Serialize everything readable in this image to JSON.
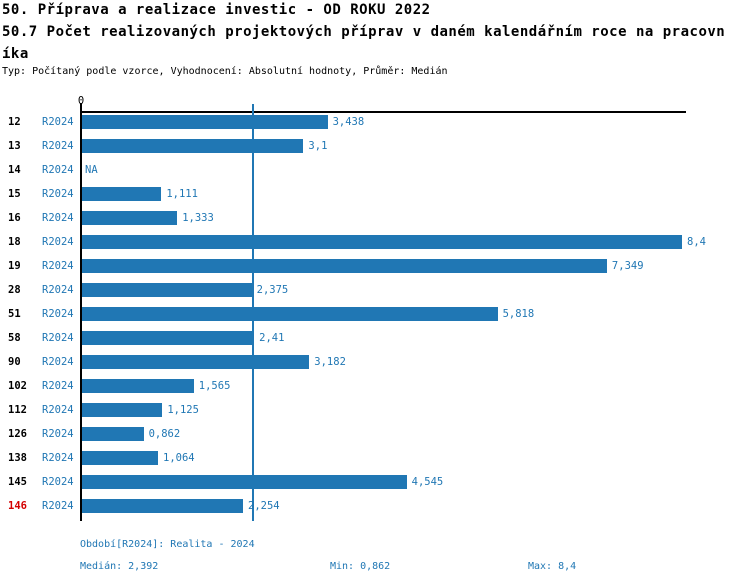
{
  "header": {
    "title_line1": "50. Příprava a realizace investic - OD ROKU 2022",
    "title_line2": "50.7 Počet realizovaných projektových příprav v daném kalendářním roce na pracovn",
    "title_line3": "íka",
    "subtitle": "Typ: Počítaný podle vzorce, Vyhodnocení: Absolutní hodnoty, Průměr: Medián"
  },
  "colors": {
    "bar_blue": "#2077b4",
    "text_blue": "#2077b4",
    "highlight_red": "#d40000",
    "axis_black": "#000000"
  },
  "chart_data": {
    "type": "bar",
    "orientation": "horizontal",
    "title": "50.7 Počet realizovaných projektových příprav v daném kalendářním roce na pracovníka",
    "zero_tick_label": "0",
    "xlim": [
      0,
      8.45
    ],
    "grid": false,
    "median_value": 2.392,
    "median_line": true,
    "period": "R2024",
    "rows": [
      {
        "id": "12",
        "period": "R2024",
        "value": 3.438,
        "value_label": "3,438",
        "highlight": false
      },
      {
        "id": "13",
        "period": "R2024",
        "value": 3.1,
        "value_label": "3,1",
        "highlight": false
      },
      {
        "id": "14",
        "period": "R2024",
        "value": null,
        "value_label": "NA",
        "highlight": false
      },
      {
        "id": "15",
        "period": "R2024",
        "value": 1.111,
        "value_label": "1,111",
        "highlight": false
      },
      {
        "id": "16",
        "period": "R2024",
        "value": 1.333,
        "value_label": "1,333",
        "highlight": false
      },
      {
        "id": "18",
        "period": "R2024",
        "value": 8.4,
        "value_label": "8,4",
        "highlight": false
      },
      {
        "id": "19",
        "period": "R2024",
        "value": 7.349,
        "value_label": "7,349",
        "highlight": false
      },
      {
        "id": "28",
        "period": "R2024",
        "value": 2.375,
        "value_label": "2,375",
        "highlight": false
      },
      {
        "id": "51",
        "period": "R2024",
        "value": 5.818,
        "value_label": "5,818",
        "highlight": false
      },
      {
        "id": "58",
        "period": "R2024",
        "value": 2.41,
        "value_label": "2,41",
        "highlight": false
      },
      {
        "id": "90",
        "period": "R2024",
        "value": 3.182,
        "value_label": "3,182",
        "highlight": false
      },
      {
        "id": "102",
        "period": "R2024",
        "value": 1.565,
        "value_label": "1,565",
        "highlight": false
      },
      {
        "id": "112",
        "period": "R2024",
        "value": 1.125,
        "value_label": "1,125",
        "highlight": false
      },
      {
        "id": "126",
        "period": "R2024",
        "value": 0.862,
        "value_label": "0,862",
        "highlight": false
      },
      {
        "id": "138",
        "period": "R2024",
        "value": 1.064,
        "value_label": "1,064",
        "highlight": false
      },
      {
        "id": "145",
        "period": "R2024",
        "value": 4.545,
        "value_label": "4,545",
        "highlight": false
      },
      {
        "id": "146",
        "period": "R2024",
        "value": 2.254,
        "value_label": "2,254",
        "highlight": true
      }
    ]
  },
  "footer": {
    "period": "Období[R2024]: Realita - 2024",
    "median": "Medián: 2,392",
    "min": "Min: 0,862",
    "max": "Max: 8,4"
  }
}
